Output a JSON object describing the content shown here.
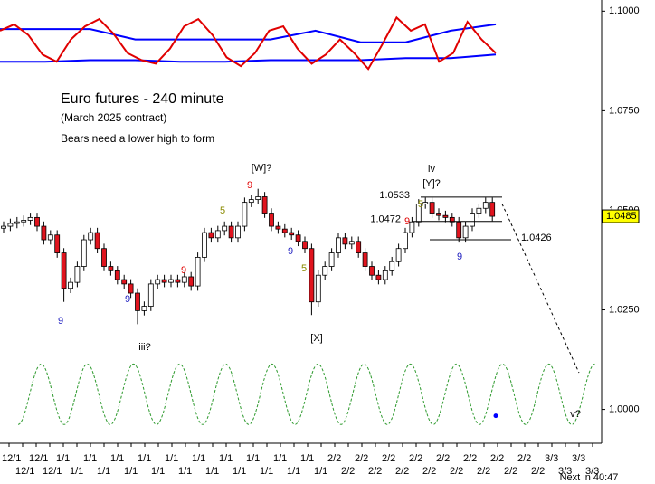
{
  "chart_data": {
    "type": "candlestick",
    "title": "Euro futures - 240 minute",
    "subtitle": "(March  2025 contract)",
    "note": "Bears need a lower high to form",
    "ylim": [
      0.9915,
      1.1028
    ],
    "yticks": [
      {
        "value": 1.1,
        "label": "1.1000"
      },
      {
        "value": 1.075,
        "label": "1.0750"
      },
      {
        "value": 1.05,
        "label": "1.0500"
      },
      {
        "value": 1.025,
        "label": "1.0250"
      },
      {
        "value": 1.0,
        "label": "1.0000"
      }
    ],
    "last_price": 1.0485,
    "last_price_color": "#ffff00",
    "up_color": "#ffffff",
    "down_color": "#e0141e",
    "open": [
      1.0455,
      1.046,
      1.0467,
      1.0471,
      1.0475,
      1.0482,
      1.046,
      1.0426,
      1.0438,
      1.0393,
      1.0304,
      1.0319,
      1.0359,
      1.0426,
      1.0444,
      1.0404,
      1.0359,
      1.0348,
      1.0326,
      1.0315,
      1.0292,
      1.0248,
      1.0259,
      1.0315,
      1.0326,
      1.0319,
      1.0326,
      1.0319,
      1.0333,
      1.031,
      1.0382,
      1.0444,
      1.0431,
      1.0449,
      1.046,
      1.0431,
      1.046,
      1.052,
      1.0527,
      1.0534,
      1.0493,
      1.046,
      1.0453,
      1.0444,
      1.0438,
      1.0422,
      1.0404,
      1.027,
      1.0337,
      1.0359,
      1.0393,
      1.0431,
      1.0415,
      1.0422,
      1.0393,
      1.0359,
      1.0337,
      1.0326,
      1.0348,
      1.0371,
      1.0404,
      1.0444,
      1.0471,
      1.0516,
      1.052,
      1.0493,
      1.0487,
      1.0482,
      1.0471,
      1.0431,
      1.046,
      1.0493,
      1.0505,
      1.052
    ],
    "high": [
      1.0472,
      1.0479,
      1.0483,
      1.0487,
      1.0494,
      1.0494,
      1.0472,
      1.045,
      1.045,
      1.0405,
      1.0331,
      1.0371,
      1.0438,
      1.0456,
      1.0456,
      1.0416,
      1.0371,
      1.036,
      1.0338,
      1.0327,
      1.0304,
      1.0271,
      1.0327,
      1.0338,
      1.0338,
      1.0338,
      1.0338,
      1.0345,
      1.0345,
      1.0394,
      1.0456,
      1.0456,
      1.0461,
      1.0472,
      1.0472,
      1.0472,
      1.0532,
      1.0539,
      1.0554,
      1.0546,
      1.0505,
      1.0472,
      1.0465,
      1.0456,
      1.045,
      1.0434,
      1.0416,
      1.0349,
      1.0371,
      1.0405,
      1.0443,
      1.0443,
      1.0434,
      1.0434,
      1.0405,
      1.0371,
      1.0349,
      1.036,
      1.0383,
      1.0416,
      1.0456,
      1.0483,
      1.0528,
      1.0532,
      1.0532,
      1.0505,
      1.0499,
      1.0494,
      1.0483,
      1.0472,
      1.0505,
      1.0517,
      1.0532,
      1.0532
    ],
    "low": [
      1.0443,
      1.0448,
      1.0455,
      1.0459,
      1.0463,
      1.0448,
      1.0414,
      1.0414,
      1.0381,
      1.027,
      1.0292,
      1.0307,
      1.0347,
      1.0414,
      1.0392,
      1.0347,
      1.0336,
      1.0314,
      1.0303,
      1.028,
      1.0214,
      1.0236,
      1.0247,
      1.0303,
      1.0307,
      1.0307,
      1.0307,
      1.0307,
      1.0298,
      1.0298,
      1.037,
      1.0419,
      1.0419,
      1.0437,
      1.0419,
      1.0419,
      1.0448,
      1.0508,
      1.0515,
      1.0481,
      1.0448,
      1.0441,
      1.0432,
      1.0426,
      1.041,
      1.0392,
      1.0237,
      1.0258,
      1.0325,
      1.0347,
      1.0381,
      1.0403,
      1.0403,
      1.0381,
      1.0347,
      1.0325,
      1.0314,
      1.0314,
      1.0336,
      1.0359,
      1.0392,
      1.0432,
      1.0459,
      1.0504,
      1.0481,
      1.0475,
      1.047,
      1.0459,
      1.0419,
      1.0419,
      1.0448,
      1.0481,
      1.0493,
      1.0473
    ],
    "close": [
      1.046,
      1.0467,
      1.0471,
      1.0475,
      1.0482,
      1.046,
      1.0426,
      1.0438,
      1.0393,
      1.0304,
      1.0319,
      1.0359,
      1.0426,
      1.0444,
      1.0404,
      1.0359,
      1.0348,
      1.0326,
      1.0315,
      1.0292,
      1.0248,
      1.0259,
      1.0315,
      1.0326,
      1.0319,
      1.0326,
      1.0319,
      1.0333,
      1.031,
      1.0382,
      1.0444,
      1.0431,
      1.0449,
      1.046,
      1.0431,
      1.046,
      1.052,
      1.0527,
      1.0534,
      1.0493,
      1.046,
      1.0453,
      1.0444,
      1.0438,
      1.0422,
      1.0404,
      1.027,
      1.0337,
      1.0359,
      1.0393,
      1.0431,
      1.0415,
      1.0422,
      1.0393,
      1.0359,
      1.0337,
      1.0326,
      1.0348,
      1.0371,
      1.0404,
      1.0444,
      1.0471,
      1.0516,
      1.052,
      1.0493,
      1.0487,
      1.0482,
      1.0471,
      1.0431,
      1.046,
      1.0493,
      1.0505,
      1.052,
      1.0485
    ],
    "indicator": [
      {
        "color": "#0000ff",
        "values": [
          1.0955,
          1.0955,
          1.0955,
          1.0929,
          1.0929,
          1.0929,
          1.0929,
          1.0951,
          1.0922,
          1.0922,
          1.0951,
          1.0967
        ]
      },
      {
        "color": "#0000ff",
        "values": [
          1.0873,
          1.0873,
          1.0877,
          1.0877,
          1.0873,
          1.0873,
          1.0877,
          1.0877,
          1.0877,
          1.0882,
          1.0882,
          1.0891
        ]
      },
      {
        "color": "#e00000",
        "values": [
          1.0951,
          1.0967,
          1.094,
          1.0891,
          1.0873,
          1.0929,
          1.0962,
          1.098,
          1.0944,
          1.0895,
          1.0877,
          1.0868,
          1.0906,
          1.0962,
          1.098,
          1.094,
          1.0884,
          1.0862,
          1.0895,
          1.0951,
          1.0962,
          1.0906,
          1.0868,
          1.0891,
          1.0929,
          1.0895,
          1.0855,
          1.0917,
          1.0984,
          1.0951,
          1.0967,
          1.0873,
          1.0895,
          1.0973,
          1.0929,
          1.0895
        ]
      }
    ],
    "cycle": {
      "color": "#2e9a2e",
      "values": [
        0.9962,
        1.0114,
        0.9962,
        1.0114,
        0.9962,
        1.0114,
        0.9962,
        1.0114,
        0.9962,
        1.0114,
        0.9962,
        1.0114,
        0.9962,
        1.0114,
        0.9962,
        1.0114,
        0.9962,
        1.0114,
        0.9962,
        1.0114,
        0.9962,
        1.0114,
        0.9962,
        1.0114,
        0.9962,
        1.0114
      ]
    },
    "cycle_marker": 0.9984,
    "projection": [
      1.0516,
      1.0092
    ],
    "levels": [
      1.0533,
      1.0472,
      1.0426
    ],
    "wave_labels": [
      {
        "text": "[W]?",
        "color": "#000000"
      },
      {
        "text": "9",
        "color": "#e00000"
      },
      {
        "text": "5",
        "color": "#8a8a00"
      },
      {
        "text": "9",
        "color": "#e00000"
      },
      {
        "text": "9",
        "color": "#2020c0"
      },
      {
        "text": "9",
        "color": "#2020c0"
      },
      {
        "text": "iii?",
        "color": "#000000"
      },
      {
        "text": "[X]",
        "color": "#000000"
      },
      {
        "text": "5",
        "color": "#8a8a00"
      },
      {
        "text": "9",
        "color": "#2020c0"
      },
      {
        "text": "iv",
        "color": "#000000"
      },
      {
        "text": "[Y]?",
        "color": "#000000"
      },
      {
        "text": "5",
        "color": "#8a8a00"
      },
      {
        "text": "9",
        "color": "#e00000"
      },
      {
        "text": "9",
        "color": "#2020c0"
      },
      {
        "text": "v?",
        "color": "#000000"
      }
    ],
    "x_labels": [
      "12/1",
      "12/1",
      "12/1",
      "12/1",
      "1/1",
      "1/1",
      "1/1",
      "1/1",
      "1/1",
      "1/1",
      "1/1",
      "1/1",
      "1/1",
      "1/1",
      "1/1",
      "1/1",
      "1/1",
      "1/1",
      "1/1",
      "1/1",
      "1/1",
      "1/1",
      "1/1",
      "1/1",
      "2/2",
      "2/2",
      "2/2",
      "2/2",
      "2/2",
      "2/2",
      "2/2",
      "2/2",
      "2/2",
      "2/2",
      "2/2",
      "2/2",
      "2/2",
      "2/2",
      "2/2",
      "2/2",
      "3/3",
      "3/3",
      "3/3",
      "3/3"
    ],
    "countdown": "Next in 40:47"
  }
}
